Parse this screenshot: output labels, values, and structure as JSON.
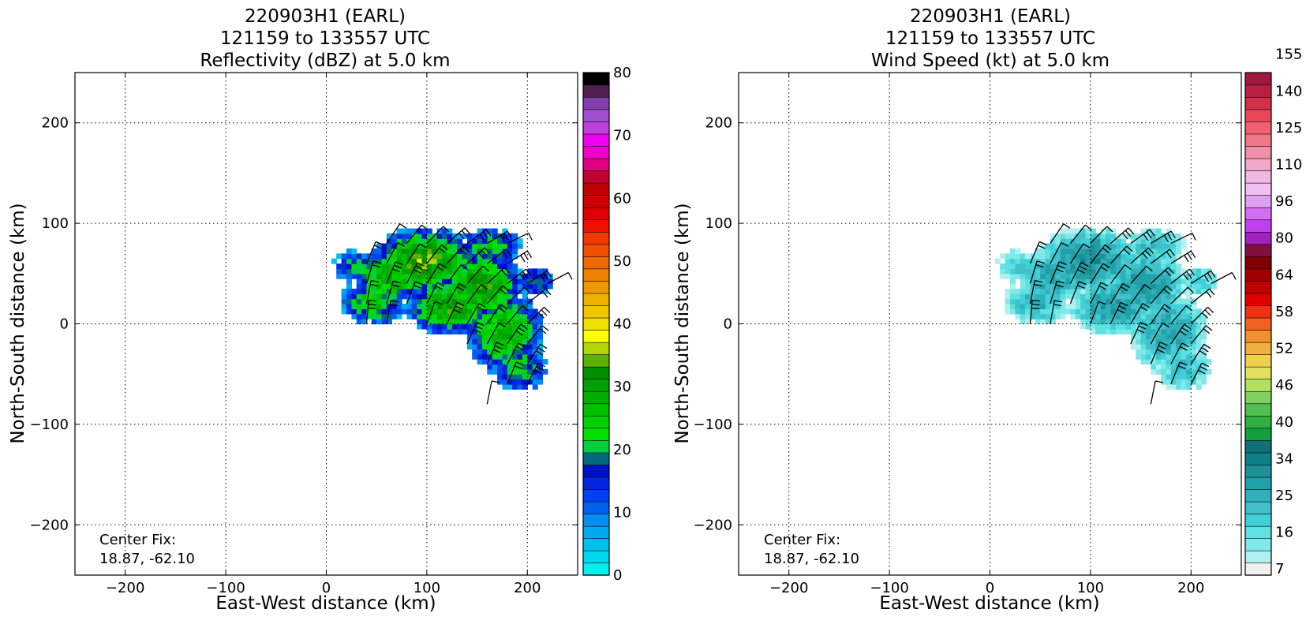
{
  "chart_data": [
    {
      "type": "heatmap",
      "title_lines": [
        "220903H1 (EARL)",
        "121159 to 133557 UTC",
        "Reflectivity (dBZ) at 5.0 km"
      ],
      "xlabel": "East-West distance (km)",
      "ylabel": "North-South distance (km)",
      "xlim": [
        -250,
        250
      ],
      "ylim": [
        -250,
        250
      ],
      "xticks": [
        -200,
        -100,
        0,
        100,
        200
      ],
      "yticks": [
        -200,
        -100,
        0,
        100,
        200
      ],
      "grid": true,
      "annotation": {
        "label": "Center Fix:",
        "value": "18.87, -62.10"
      },
      "colorbar": {
        "min": 0,
        "max": 80,
        "ticks": [
          0,
          10,
          20,
          30,
          40,
          50,
          60,
          70,
          80
        ],
        "colors": [
          "#00f0f0",
          "#00d8f0",
          "#00c0f0",
          "#00a8f0",
          "#0090f0",
          "#0060f0",
          "#0040f0",
          "#0028e0",
          "#0010c8",
          "#006a80",
          "#00d040",
          "#00e000",
          "#00d000",
          "#00c000",
          "#00b000",
          "#00a000",
          "#009000",
          "#60b000",
          "#b0d800",
          "#ffff00",
          "#f0e000",
          "#f0c800",
          "#f0b000",
          "#f09800",
          "#f08000",
          "#f06800",
          "#f05000",
          "#f03800",
          "#f01000",
          "#e00000",
          "#d00000",
          "#c00000",
          "#c00030",
          "#e00080",
          "#f000c8",
          "#f000f0",
          "#c040e0",
          "#a050d0",
          "#8040b0",
          "#502050",
          "#000000"
        ]
      },
      "echo_values": {
        "min": 5,
        "max": 38
      }
    },
    {
      "type": "heatmap",
      "title_lines": [
        "220903H1 (EARL)",
        "121159 to 133557 UTC",
        "Wind Speed (kt) at 5.0 km"
      ],
      "xlabel": "East-West distance (km)",
      "ylabel": "North-South distance (km)",
      "xlim": [
        -250,
        250
      ],
      "ylim": [
        -250,
        250
      ],
      "xticks": [
        -200,
        -100,
        0,
        100,
        200
      ],
      "yticks": [
        -200,
        -100,
        0,
        100,
        200
      ],
      "grid": true,
      "annotation": {
        "label": "Center Fix:",
        "value": "18.87, -62.10"
      },
      "colorbar": {
        "tick_labels": [
          "7",
          "16",
          "25",
          "34",
          "40",
          "46",
          "52",
          "58",
          "64",
          "80",
          "96",
          "110",
          "125",
          "140",
          "155"
        ],
        "colors": [
          "#f0f0f0",
          "#b0f0f0",
          "#80e8e8",
          "#60e0e0",
          "#40d0d8",
          "#40c0c8",
          "#30b0b8",
          "#20a0a8",
          "#209098",
          "#108088",
          "#107078",
          "#10a040",
          "#30b040",
          "#50c050",
          "#80d060",
          "#b0e060",
          "#e0e060",
          "#f0d050",
          "#f0b040",
          "#f09030",
          "#f06020",
          "#f03010",
          "#e00000",
          "#c00000",
          "#a00000",
          "#800000",
          "#801040",
          "#a020c0",
          "#c040f0",
          "#d070f0",
          "#e0a0f0",
          "#f0c0f0",
          "#f0b8e0",
          "#f0a8c8",
          "#f090a8",
          "#f07888",
          "#f06070",
          "#e84858",
          "#d03048",
          "#b82040",
          "#a01840"
        ]
      },
      "wind_values": {
        "min": 7,
        "max": 34
      }
    }
  ]
}
